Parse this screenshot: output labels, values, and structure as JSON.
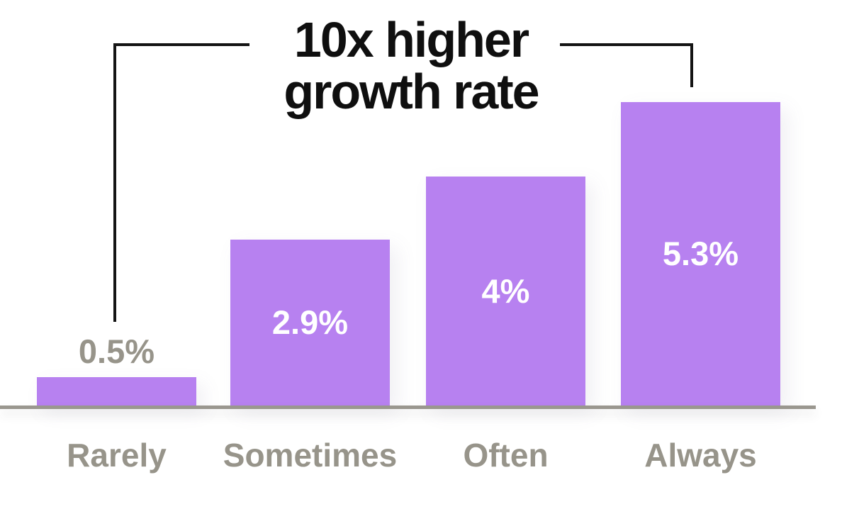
{
  "chart_data": {
    "type": "bar",
    "title": "10x higher growth rate",
    "title_lines": [
      "10x higher",
      "growth rate"
    ],
    "categories": [
      "Rarely",
      "Sometimes",
      "Often",
      "Always"
    ],
    "values": [
      0.5,
      2.9,
      4,
      5.3
    ],
    "value_labels": [
      "0.5%",
      "2.9%",
      "4%",
      "5.3%"
    ],
    "value_label_positions": [
      "above",
      "inside",
      "inside",
      "inside"
    ],
    "xlabel": "",
    "ylabel": "",
    "ylim": [
      0,
      5.5
    ],
    "grid": false,
    "legend": "none",
    "annotation": {
      "text": "10x higher growth rate",
      "connects_categories": [
        "Rarely",
        "Always"
      ]
    },
    "colors": {
      "bar": "#b781f0",
      "in_bar_label": "#ffffff",
      "above_bar_label": "#97948a",
      "category_label": "#97948a",
      "axis_line": "#9a978f",
      "title_text": "#0f0f0f",
      "annotation_line": "#141414",
      "background": "#ffffff"
    }
  }
}
